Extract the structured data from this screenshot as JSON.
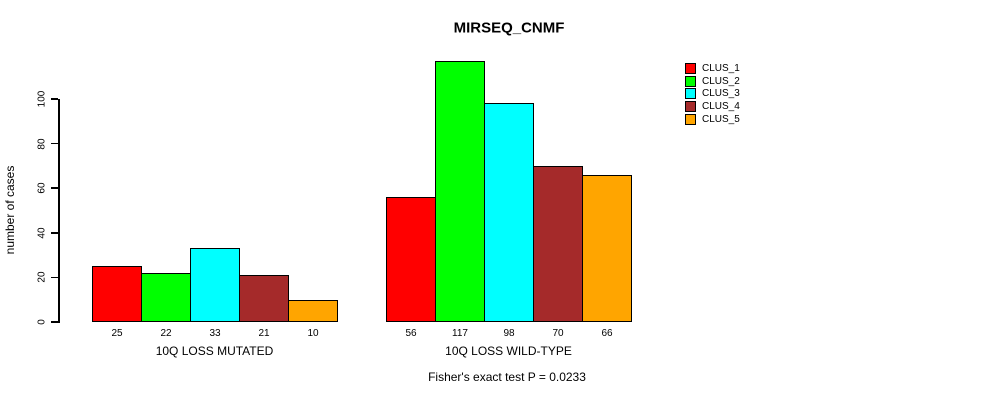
{
  "chart_data": {
    "type": "bar",
    "title": "MIRSEQ_CNMF",
    "ylabel": "number of cases",
    "xlabel": "",
    "caption": "Fisher's exact test P = 0.0233",
    "yticks": [
      0,
      20,
      40,
      60,
      80,
      100
    ],
    "ylim": [
      0,
      100
    ],
    "grid": false,
    "legend_position": "right",
    "bar_border_color": "#000000",
    "groups": [
      {
        "label": "10Q LOSS MUTATED",
        "values": [
          25,
          22,
          33,
          21,
          10
        ]
      },
      {
        "label": "10Q LOSS WILD-TYPE",
        "values": [
          56,
          117,
          98,
          70,
          66
        ]
      }
    ],
    "series": [
      {
        "name": "CLUS_1",
        "color": "#FF0000"
      },
      {
        "name": "CLUS_2",
        "color": "#00FF00"
      },
      {
        "name": "CLUS_3",
        "color": "#00FFFF"
      },
      {
        "name": "CLUS_4",
        "color": "#A52A2A"
      },
      {
        "name": "CLUS_5",
        "color": "#FFA500"
      }
    ]
  }
}
